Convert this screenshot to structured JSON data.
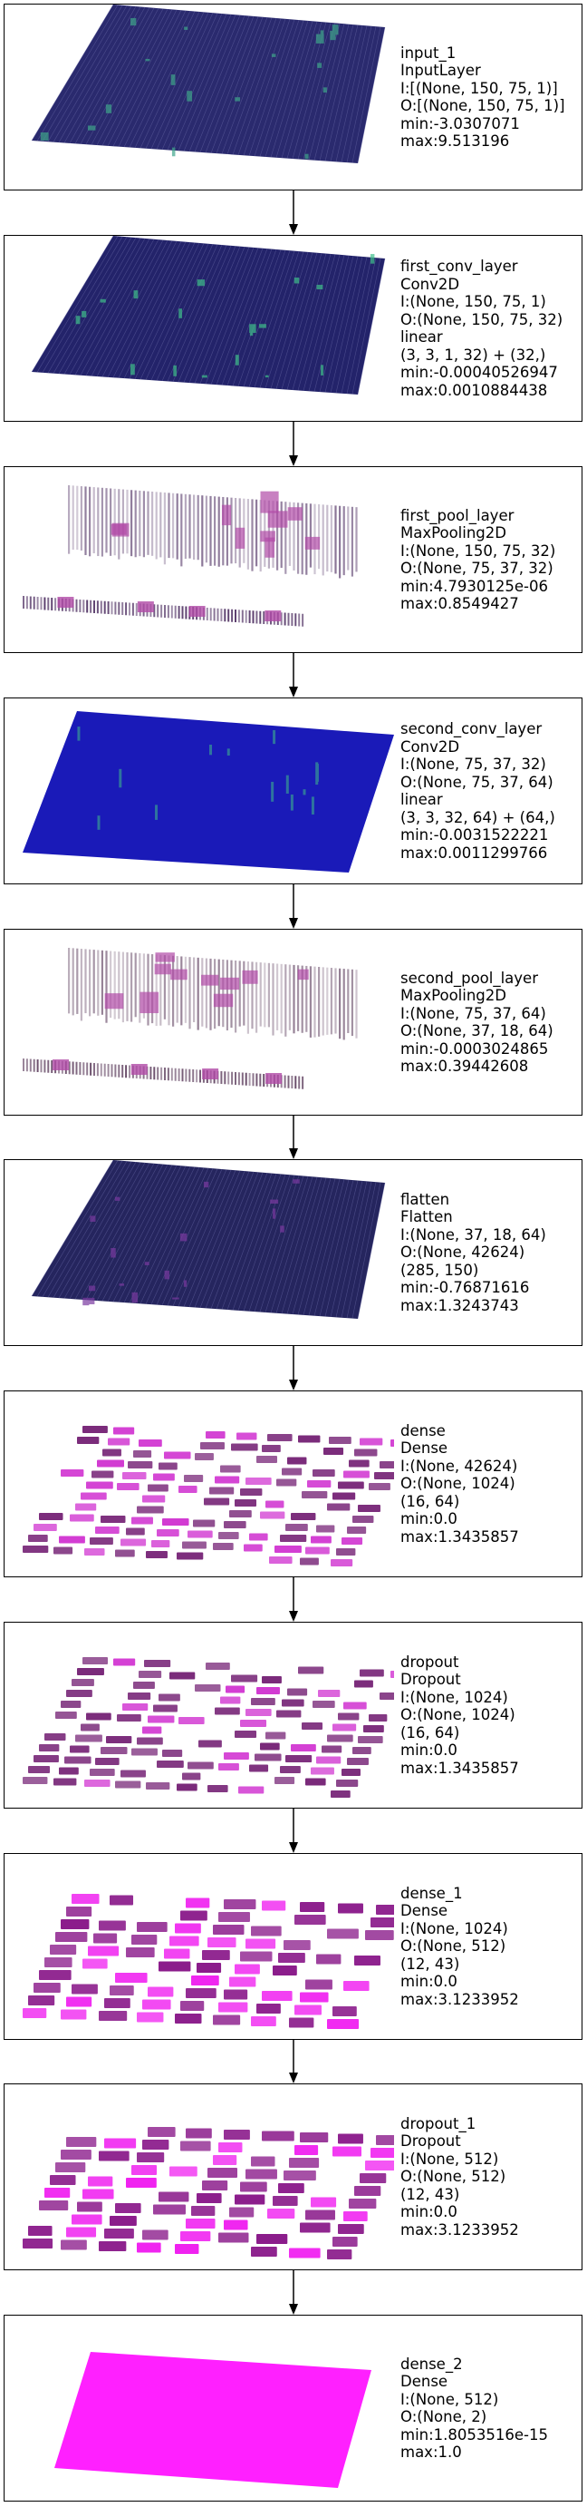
{
  "layers": [
    {
      "lines": [
        "input_1",
        "InputLayer",
        "I:[(None, 150, 75, 1)]",
        "O:[(None, 150, 75, 1)]",
        "min:-3.0307071",
        "max:9.513196"
      ],
      "viz": "grid",
      "color": "#2a2a6e",
      "accent": "#3fa58a"
    },
    {
      "lines": [
        "first_conv_layer",
        "Conv2D",
        "I:(None, 150, 75, 1)",
        "O:(None, 150, 75, 32)",
        "linear",
        "(3, 3, 1, 32) + (32,)",
        "min:-0.00040526947",
        "max:0.0010884438"
      ],
      "viz": "grid",
      "color": "#23236a",
      "accent": "#3fbf8a"
    },
    {
      "lines": [
        "first_pool_layer",
        "MaxPooling2D",
        "I:(None, 150, 75, 32)",
        "O:(None, 75, 37, 32)",
        "min:4.7930125e-06",
        "max:0.8549427"
      ],
      "viz": "pool",
      "color": "#4a2a5e",
      "accent": "#b04aa6"
    },
    {
      "lines": [
        "second_conv_layer",
        "Conv2D",
        "I:(None, 75, 37, 32)",
        "O:(None, 75, 37, 64)",
        "linear",
        "(3, 3, 32, 64) + (64,)",
        "min:-0.0031522221",
        "max:0.0011299766"
      ],
      "viz": "solid",
      "color": "#1a1ab8",
      "accent": "#3fbf8a"
    },
    {
      "lines": [
        "second_pool_layer",
        "MaxPooling2D",
        "I:(None, 75, 37, 64)",
        "O:(None, 37, 18, 64)",
        "min:-0.0003024865",
        "max:0.39442608"
      ],
      "viz": "pool",
      "color": "#5a3a5a",
      "accent": "#b04aa6"
    },
    {
      "lines": [
        "flatten",
        "Flatten",
        "I:(None, 37, 18, 64)",
        "O:(None, 42624)",
        "(285, 150)",
        "min:-0.76871616",
        "max:1.3243743"
      ],
      "viz": "grid",
      "color": "#25255e",
      "accent": "#7a3aa0"
    },
    {
      "lines": [
        "dense",
        "Dense",
        "I:(None, 42624)",
        "O:(None, 1024)",
        "(16, 64)",
        "min:0.0",
        "max:1.3435857"
      ],
      "viz": "blocks",
      "color": "#7a2a7a",
      "accent": "#d23ad2"
    },
    {
      "lines": [
        "dropout",
        "Dropout",
        "I:(None, 1024)",
        "O:(None, 1024)",
        "(16, 64)",
        "min:0.0",
        "max:1.3435857"
      ],
      "viz": "blocks",
      "color": "#7a2a7a",
      "accent": "#d23ad2"
    },
    {
      "lines": [
        "dense_1",
        "Dense",
        "I:(None, 1024)",
        "O:(None, 512)",
        "(12, 43)",
        "min:0.0",
        "max:3.1233952"
      ],
      "viz": "blocks2",
      "color": "#8a1a8a",
      "accent": "#f020f0"
    },
    {
      "lines": [
        "dropout_1",
        "Dropout",
        "I:(None, 512)",
        "O:(None, 512)",
        "(12, 43)",
        "min:0.0",
        "max:3.1233952"
      ],
      "viz": "blocks2",
      "color": "#8a1a8a",
      "accent": "#f020f0"
    },
    {
      "lines": [
        "dense_2",
        "Dense",
        "I:(None, 512)",
        "O:(None, 2)",
        "min:1.8053516e-15",
        "max:1.0"
      ],
      "viz": "magenta",
      "color": "#ff20ff",
      "accent": "#ff20ff"
    }
  ]
}
